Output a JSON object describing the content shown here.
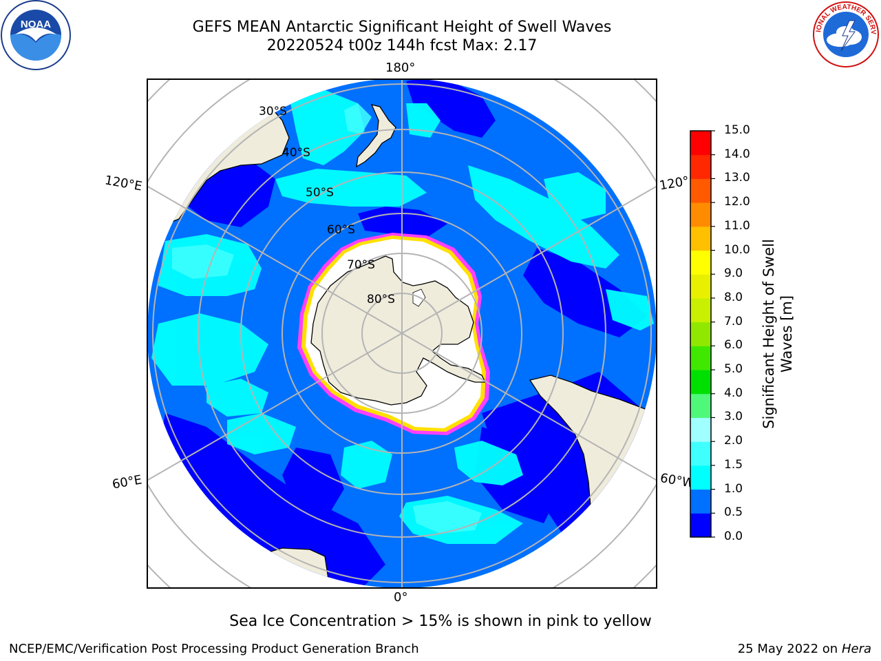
{
  "title": {
    "line1": "GEFS MEAN Antarctic Significant Height of Swell Waves",
    "line2": "20220524 t00z 144h fcst   Max: 2.17"
  },
  "longitude_labels": {
    "top": "180°",
    "bottom": "0°",
    "upper_left": "120°E",
    "upper_right": "120°",
    "lower_left": "60°E",
    "lower_right": "60°W"
  },
  "latitude_labels": [
    "30°S",
    "40°S",
    "50°S",
    "60°S",
    "70°S",
    "80°S"
  ],
  "colorbar": {
    "title_line1": "Significant Height of Swell",
    "title_line2": "Waves [m]",
    "ticks": [
      "0.0",
      "0.5",
      "1.0",
      "1.5",
      "2.0",
      "3.0",
      "4.0",
      "5.0",
      "6.0",
      "7.0",
      "8.0",
      "9.0",
      "10.0",
      "11.0",
      "12.0",
      "13.0",
      "14.0",
      "15.0"
    ],
    "colors": [
      "#0000ff",
      "#0070ff",
      "#00ffff",
      "#40ffff",
      "#a0ffff",
      "#50f87a",
      "#00e000",
      "#40e800",
      "#90e800",
      "#c8f000",
      "#e8f000",
      "#ffff00",
      "#ffc000",
      "#ff8c00",
      "#ff5a00",
      "#ff2800",
      "#ff0000"
    ]
  },
  "sea_ice_note": "Sea Ice Concentration > 15% is shown in pink to yellow",
  "footer": {
    "credit": "NCEP/EMC/Verification Post Processing Product Generation Branch",
    "date": "25 May 2022 on",
    "host": "Hera"
  },
  "logos": {
    "left": "NOAA",
    "right": "NATIONAL WEATHER SERVICE"
  },
  "map_colors": {
    "land": "#efecdc",
    "antarctic_ice_shelf": "#ffffff",
    "sea_ice_edge": "#ff40ff",
    "swell_low": "#0000ff",
    "swell_05": "#0070ff",
    "swell_10": "#00ffff",
    "swell_15": "#40ffff",
    "graticule": "#b4b4b4"
  }
}
